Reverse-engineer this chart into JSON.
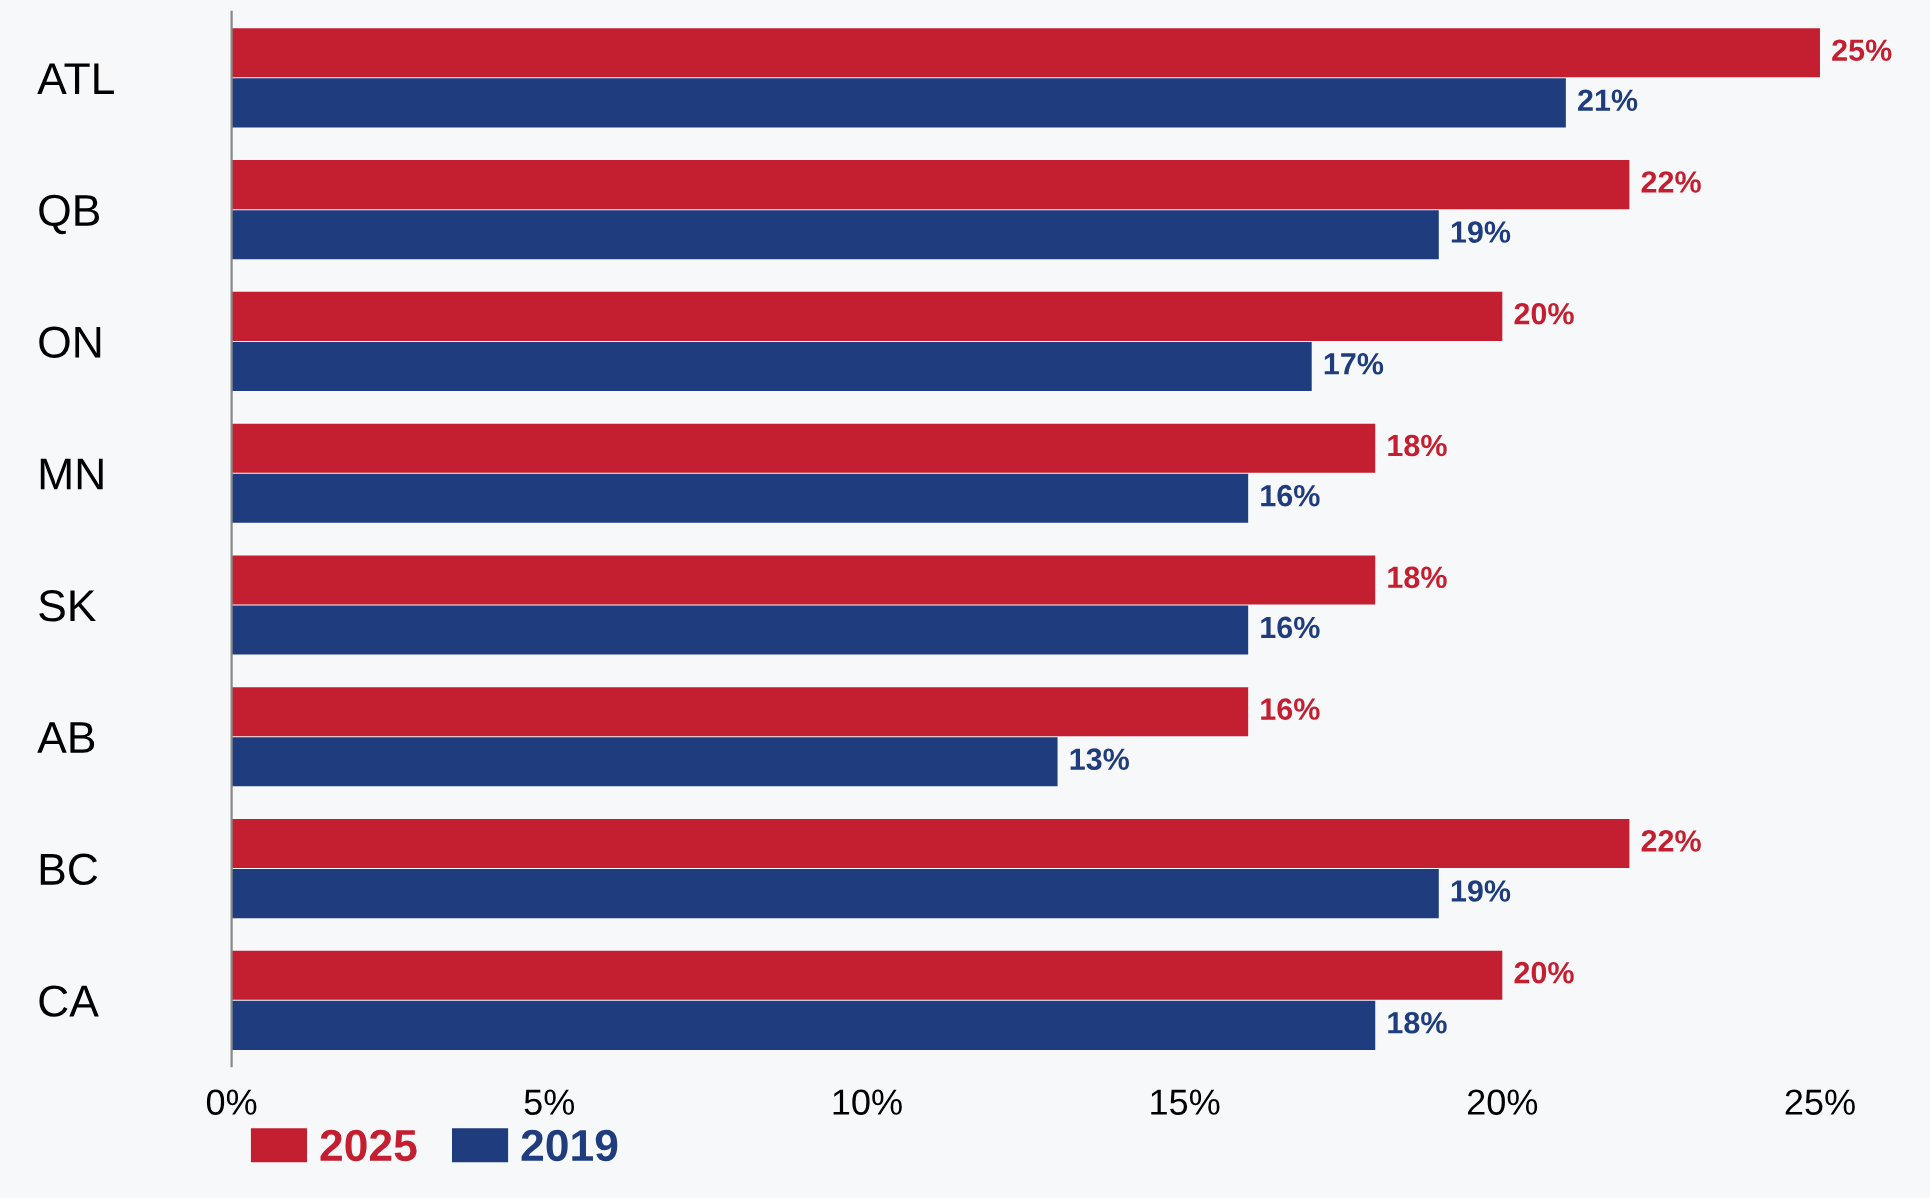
{
  "chart_data": {
    "type": "bar",
    "orientation": "horizontal",
    "categories": [
      "ATL",
      "QB",
      "ON",
      "MN",
      "SK",
      "AB",
      "BC",
      "CA"
    ],
    "series": [
      {
        "name": "2025",
        "color": "#c41f30",
        "values": [
          25,
          22,
          20,
          18,
          18,
          16,
          22,
          20
        ],
        "value_labels": [
          "25%",
          "22%",
          "20%",
          "18%",
          "18%",
          "16%",
          "22%",
          "20%"
        ]
      },
      {
        "name": "2019",
        "color": "#1f3c7e",
        "values": [
          21,
          19,
          17,
          16,
          16,
          13,
          19,
          18
        ],
        "value_labels": [
          "21%",
          "19%",
          "17%",
          "16%",
          "16%",
          "13%",
          "19%",
          "18%"
        ]
      }
    ],
    "xlim": [
      0,
      25
    ],
    "xticks": [
      {
        "value": 0,
        "label": "0%"
      },
      {
        "value": 5,
        "label": "5%"
      },
      {
        "value": 10,
        "label": "10%"
      },
      {
        "value": 15,
        "label": "15%"
      },
      {
        "value": 20,
        "label": "20%"
      },
      {
        "value": 25,
        "label": "25%"
      }
    ],
    "grid": false,
    "legend": "bottom left"
  }
}
